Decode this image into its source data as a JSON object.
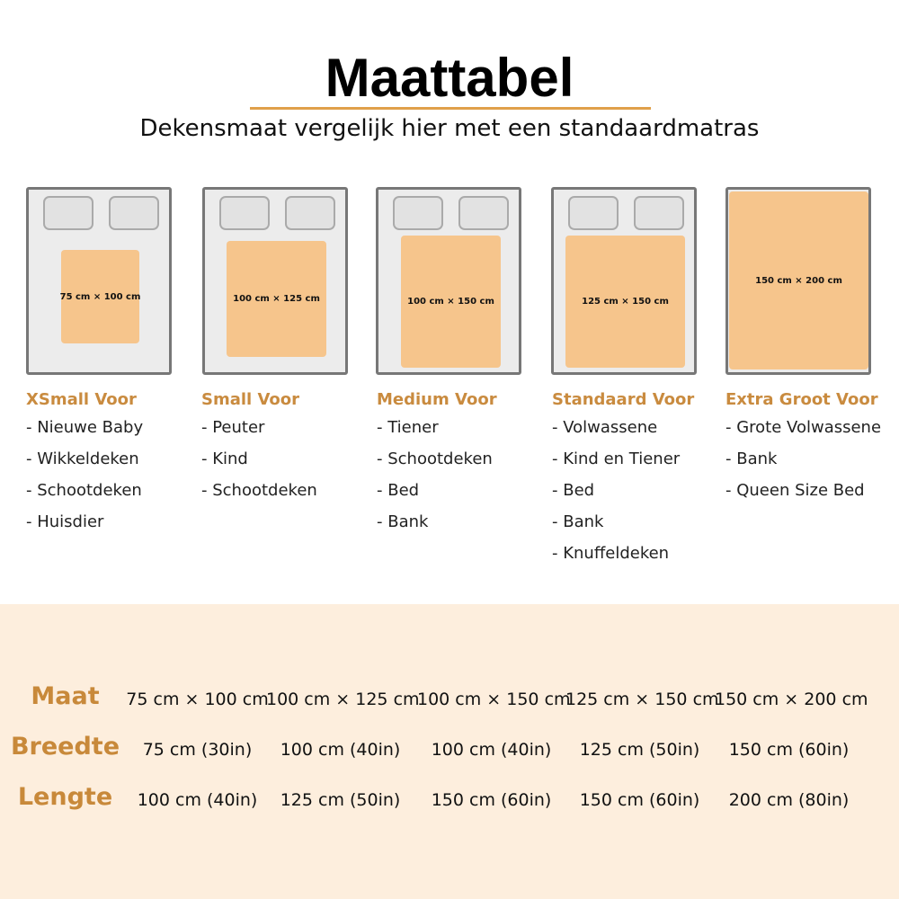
{
  "header": {
    "title": "Maattabel",
    "subtitle": "Dekensmaat vergelijk hier met een standaardmatras"
  },
  "colors": {
    "accent": "#c98b3f",
    "blanket": "#f6c58c",
    "panel": "#fdeedd"
  },
  "sizes": [
    {
      "label": "75 cm × 100 cm",
      "heading": "XSmall Voor",
      "uses": [
        "- Nieuwe Baby",
        "- Wikkeldeken",
        "- Schootdeken",
        "- Huisdier"
      ]
    },
    {
      "label": "100 cm × 125 cm",
      "heading": "Small Voor",
      "uses": [
        "- Peuter",
        "- Kind",
        "- Schootdeken"
      ]
    },
    {
      "label": "100 cm × 150 cm",
      "heading": "Medium Voor",
      "uses": [
        "- Tiener",
        "- Schootdeken",
        "- Bed",
        "- Bank"
      ]
    },
    {
      "label": "125 cm × 150 cm",
      "heading": "Standaard Voor",
      "uses": [
        "- Volwassene",
        "- Kind en Tiener",
        "- Bed",
        "- Bank",
        "- Knuffeldeken"
      ]
    },
    {
      "label": "150 cm × 200 cm",
      "heading": "Extra Groot Voor",
      "uses": [
        "- Grote Volwassene",
        "- Bank",
        "- Queen Size Bed"
      ]
    }
  ],
  "table": {
    "rows": [
      {
        "label": "Maat",
        "values": [
          "75 cm × 100 cm",
          "100 cm × 125 cm",
          "100 cm × 150 cm",
          "125 cm × 150 cm",
          "150 cm × 200 cm"
        ]
      },
      {
        "label": "Breedte",
        "values": [
          "75 cm (30in)",
          "100 cm (40in)",
          "100 cm (40in)",
          "125 cm (50in)",
          "150 cm (60in)"
        ]
      },
      {
        "label": "Lengte",
        "values": [
          "100 cm (40in)",
          "125 cm (50in)",
          "150 cm (60in)",
          "150 cm (60in)",
          "200 cm (80in)"
        ]
      }
    ]
  }
}
